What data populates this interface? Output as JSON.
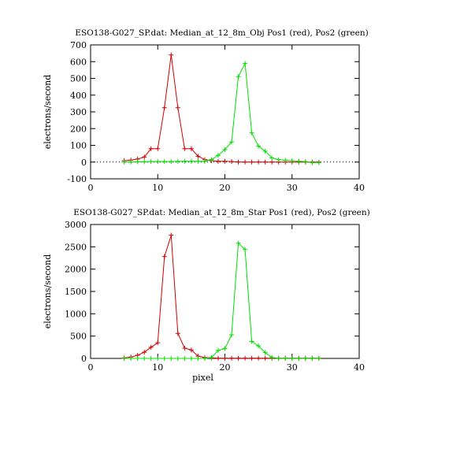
{
  "chart_data": [
    {
      "type": "line",
      "title": "ESO138-G027_SP.dat: Median_at_12_8m_Obj Pos1 (red), Pos2 (green)",
      "ylabel": "electrons/second",
      "x": [
        5,
        6,
        7,
        8,
        9,
        10,
        11,
        12,
        13,
        14,
        15,
        16,
        17,
        18,
        19,
        20,
        21,
        22,
        23,
        24,
        25,
        26,
        27,
        28,
        29,
        30,
        31,
        32,
        33,
        34
      ],
      "series": [
        {
          "color": "#d00000",
          "values": [
            8,
            12,
            18,
            30,
            80,
            80,
            325,
            640,
            325,
            80,
            80,
            35,
            15,
            8,
            5,
            5,
            3,
            0,
            0,
            0,
            0,
            0,
            0,
            0,
            0,
            0,
            0,
            0,
            0,
            0
          ]
        },
        {
          "color": "#00e000",
          "values": [
            0,
            0,
            2,
            2,
            3,
            3,
            3,
            3,
            4,
            5,
            5,
            5,
            5,
            15,
            40,
            75,
            120,
            510,
            590,
            175,
            95,
            65,
            25,
            15,
            10,
            8,
            5,
            3,
            -3,
            -3
          ]
        }
      ],
      "xlim": [
        0,
        40
      ],
      "xticks": [
        0,
        10,
        20,
        30,
        40
      ],
      "ylim": [
        -100,
        700
      ],
      "yticks": [
        -100,
        0,
        100,
        200,
        300,
        400,
        500,
        600,
        700
      ],
      "zero_line": true
    },
    {
      "type": "line",
      "title": "ESO138-G027_SP.dat: Median_at_12_8m_Star Pos1 (red), Pos2 (green)",
      "ylabel": "electrons/second",
      "xlabel": "pixel",
      "x": [
        5,
        6,
        7,
        8,
        9,
        10,
        11,
        12,
        13,
        14,
        15,
        16,
        17,
        18,
        19,
        20,
        21,
        22,
        23,
        24,
        25,
        26,
        27,
        28,
        29,
        30,
        31,
        32,
        33,
        34
      ],
      "series": [
        {
          "color": "#d00000",
          "values": [
            10,
            30,
            70,
            140,
            250,
            350,
            2280,
            2760,
            560,
            230,
            190,
            50,
            20,
            10,
            5,
            5,
            5,
            5,
            5,
            5,
            5,
            5,
            5,
            5,
            5,
            5,
            5,
            5,
            5,
            5
          ]
        },
        {
          "color": "#00e000",
          "values": [
            0,
            0,
            0,
            0,
            0,
            0,
            0,
            0,
            0,
            0,
            0,
            0,
            0,
            20,
            180,
            220,
            530,
            2580,
            2440,
            380,
            280,
            130,
            20,
            5,
            5,
            5,
            5,
            5,
            5,
            5
          ]
        }
      ],
      "xlim": [
        0,
        40
      ],
      "xticks": [
        0,
        10,
        20,
        30,
        40
      ],
      "ylim": [
        0,
        3000
      ],
      "yticks": [
        0,
        500,
        1000,
        1500,
        2000,
        2500,
        3000
      ]
    }
  ]
}
